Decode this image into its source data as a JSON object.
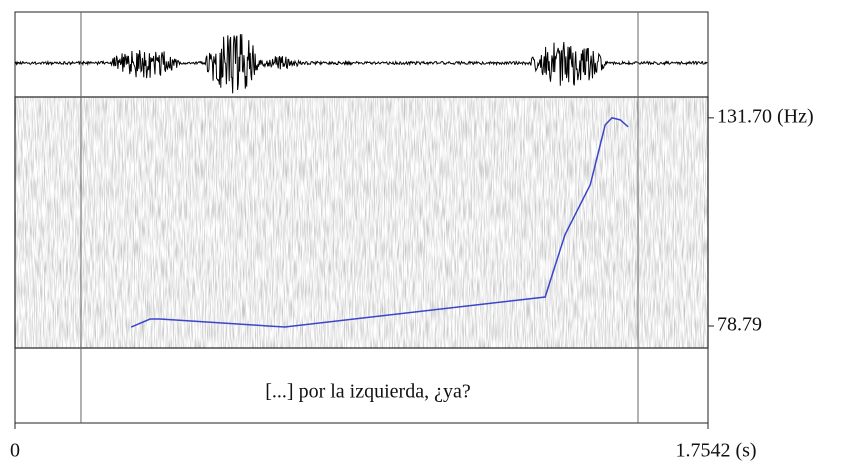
{
  "chart_data": {
    "type": "line",
    "x": [
      0.294,
      0.342,
      0.367,
      0.683,
      1.342,
      1.392,
      1.456,
      1.494,
      1.511,
      1.532,
      1.552
    ],
    "series": [
      {
        "color": "#3a45c9",
        "values": [
          78.53,
          80.57,
          80.57,
          78.53,
          86.16,
          101.94,
          114.66,
          129.92,
          131.7,
          131.19,
          129.41
        ]
      }
    ],
    "xlim": [
      0,
      1.7542
    ],
    "xticks": [
      0,
      {
        "value": 1.7542,
        "label": "1.7542 (s)"
      }
    ],
    "ylim": [
      73.2,
      137.0
    ],
    "yticks": [
      {
        "value": 78.79,
        "label": "78.79"
      },
      {
        "value": 131.7,
        "label": "131.70 (Hz)"
      }
    ],
    "boundaries": [
      0.167,
      1.577
    ],
    "interval_text": "[...] por la izquierda, ¿ya?"
  }
}
